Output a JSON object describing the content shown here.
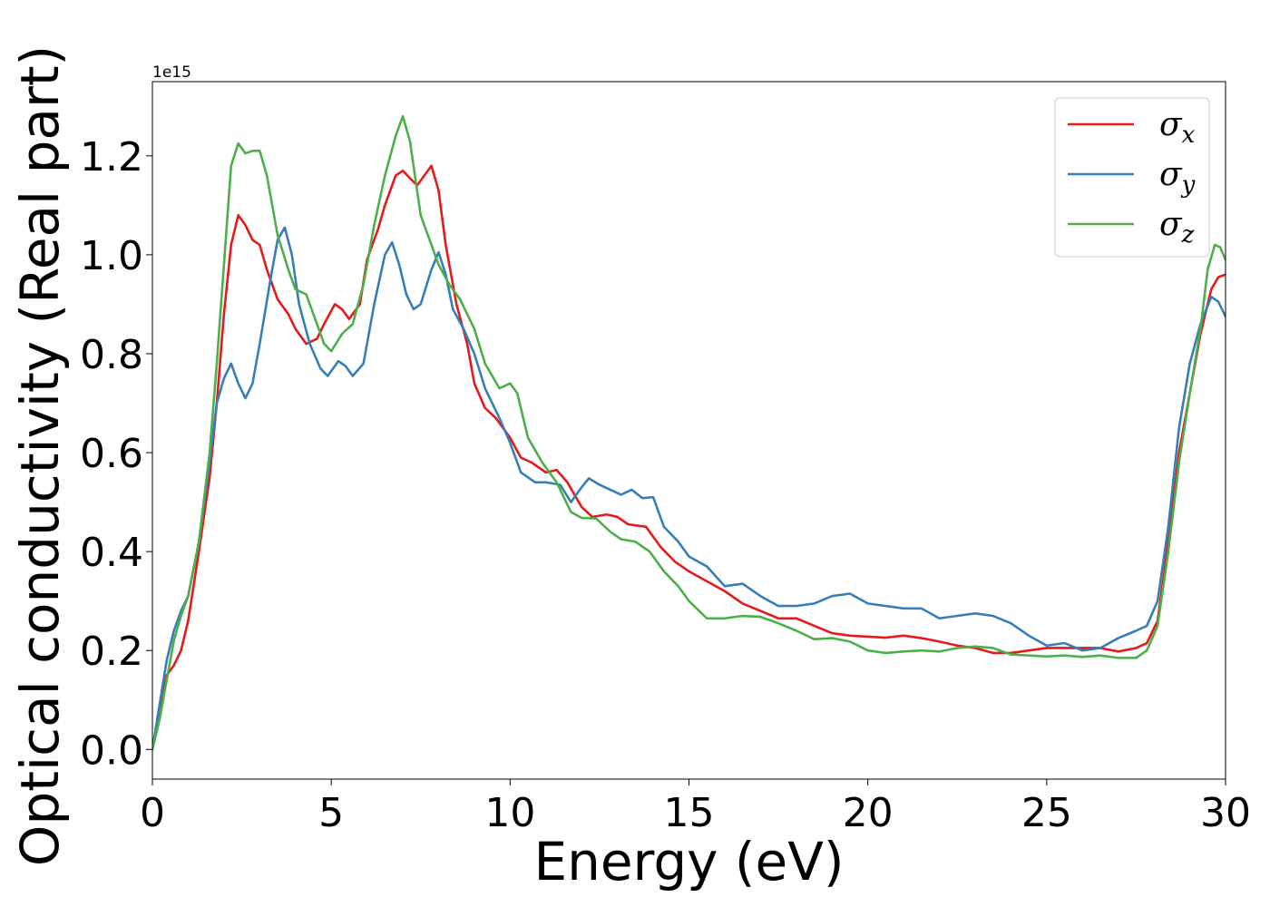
{
  "chart_data": {
    "type": "line",
    "xlabel": "Energy (eV)",
    "ylabel": "Optical conductivity (Real part)",
    "y_offset_text": "1e15",
    "xlim": [
      0,
      30
    ],
    "ylim": [
      -0.06,
      1.35
    ],
    "x_ticks": [
      0,
      5,
      10,
      15,
      20,
      25,
      30
    ],
    "x_tick_labels": [
      "0",
      "5",
      "10",
      "15",
      "20",
      "25",
      "30"
    ],
    "y_ticks": [
      0.0,
      0.2,
      0.4,
      0.6,
      0.8,
      1.0,
      1.2
    ],
    "y_tick_labels": [
      "0.0",
      "0.2",
      "0.4",
      "0.6",
      "0.8",
      "1.0",
      "1.2"
    ],
    "grid": false,
    "legend_position": "top-right",
    "series": [
      {
        "name": "σx",
        "symbol": "σ",
        "subscript": "x",
        "color": "#e41a1c",
        "points": [
          [
            0,
            0
          ],
          [
            0.2,
            0.08
          ],
          [
            0.4,
            0.15
          ],
          [
            0.6,
            0.17
          ],
          [
            0.8,
            0.2
          ],
          [
            1.0,
            0.26
          ],
          [
            1.3,
            0.4
          ],
          [
            1.6,
            0.55
          ],
          [
            1.8,
            0.7
          ],
          [
            2.0,
            0.88
          ],
          [
            2.2,
            1.02
          ],
          [
            2.4,
            1.08
          ],
          [
            2.6,
            1.06
          ],
          [
            2.8,
            1.03
          ],
          [
            3.0,
            1.02
          ],
          [
            3.2,
            0.97
          ],
          [
            3.5,
            0.91
          ],
          [
            3.8,
            0.88
          ],
          [
            4.0,
            0.85
          ],
          [
            4.3,
            0.82
          ],
          [
            4.6,
            0.83
          ],
          [
            4.8,
            0.86
          ],
          [
            5.1,
            0.9
          ],
          [
            5.3,
            0.89
          ],
          [
            5.5,
            0.87
          ],
          [
            5.8,
            0.9
          ],
          [
            6.0,
            0.99
          ],
          [
            6.3,
            1.05
          ],
          [
            6.5,
            1.1
          ],
          [
            6.8,
            1.16
          ],
          [
            7.0,
            1.17
          ],
          [
            7.2,
            1.155
          ],
          [
            7.4,
            1.14
          ],
          [
            7.6,
            1.16
          ],
          [
            7.8,
            1.18
          ],
          [
            8.0,
            1.13
          ],
          [
            8.2,
            1.02
          ],
          [
            8.5,
            0.9
          ],
          [
            8.8,
            0.82
          ],
          [
            9.0,
            0.74
          ],
          [
            9.3,
            0.69
          ],
          [
            9.6,
            0.67
          ],
          [
            10.0,
            0.63
          ],
          [
            10.3,
            0.59
          ],
          [
            10.6,
            0.58
          ],
          [
            11.0,
            0.56
          ],
          [
            11.3,
            0.565
          ],
          [
            11.6,
            0.54
          ],
          [
            12.0,
            0.49
          ],
          [
            12.3,
            0.47
          ],
          [
            12.7,
            0.475
          ],
          [
            13.0,
            0.47
          ],
          [
            13.3,
            0.455
          ],
          [
            13.8,
            0.45
          ],
          [
            14.2,
            0.41
          ],
          [
            14.6,
            0.38
          ],
          [
            15.0,
            0.36
          ],
          [
            15.5,
            0.34
          ],
          [
            16.0,
            0.32
          ],
          [
            16.5,
            0.295
          ],
          [
            17.0,
            0.28
          ],
          [
            17.5,
            0.265
          ],
          [
            18.0,
            0.265
          ],
          [
            18.5,
            0.25
          ],
          [
            19.0,
            0.235
          ],
          [
            19.5,
            0.23
          ],
          [
            20.0,
            0.228
          ],
          [
            20.5,
            0.226
          ],
          [
            21.0,
            0.23
          ],
          [
            21.5,
            0.225
          ],
          [
            22.0,
            0.218
          ],
          [
            22.5,
            0.21
          ],
          [
            23.0,
            0.205
          ],
          [
            23.5,
            0.195
          ],
          [
            24.0,
            0.195
          ],
          [
            24.5,
            0.2
          ],
          [
            25.0,
            0.205
          ],
          [
            25.5,
            0.205
          ],
          [
            26.0,
            0.205
          ],
          [
            26.5,
            0.205
          ],
          [
            27.0,
            0.198
          ],
          [
            27.5,
            0.205
          ],
          [
            27.8,
            0.215
          ],
          [
            28.1,
            0.26
          ],
          [
            28.4,
            0.42
          ],
          [
            28.7,
            0.6
          ],
          [
            29.0,
            0.72
          ],
          [
            29.3,
            0.84
          ],
          [
            29.6,
            0.93
          ],
          [
            29.8,
            0.955
          ],
          [
            30.0,
            0.96
          ]
        ]
      },
      {
        "name": "σy",
        "symbol": "σ",
        "subscript": "y",
        "color": "#377eb8",
        "points": [
          [
            0,
            0
          ],
          [
            0.2,
            0.09
          ],
          [
            0.4,
            0.18
          ],
          [
            0.6,
            0.24
          ],
          [
            0.8,
            0.28
          ],
          [
            1.0,
            0.31
          ],
          [
            1.3,
            0.42
          ],
          [
            1.6,
            0.58
          ],
          [
            1.8,
            0.7
          ],
          [
            2.0,
            0.75
          ],
          [
            2.2,
            0.78
          ],
          [
            2.4,
            0.74
          ],
          [
            2.6,
            0.71
          ],
          [
            2.8,
            0.74
          ],
          [
            3.0,
            0.82
          ],
          [
            3.3,
            0.95
          ],
          [
            3.5,
            1.03
          ],
          [
            3.7,
            1.055
          ],
          [
            3.9,
            1.0
          ],
          [
            4.1,
            0.9
          ],
          [
            4.4,
            0.82
          ],
          [
            4.7,
            0.77
          ],
          [
            4.9,
            0.755
          ],
          [
            5.2,
            0.785
          ],
          [
            5.4,
            0.775
          ],
          [
            5.6,
            0.755
          ],
          [
            5.9,
            0.78
          ],
          [
            6.2,
            0.9
          ],
          [
            6.5,
            1.0
          ],
          [
            6.7,
            1.025
          ],
          [
            6.9,
            0.98
          ],
          [
            7.1,
            0.92
          ],
          [
            7.3,
            0.89
          ],
          [
            7.5,
            0.9
          ],
          [
            7.8,
            0.97
          ],
          [
            8.0,
            1.005
          ],
          [
            8.2,
            0.96
          ],
          [
            8.4,
            0.89
          ],
          [
            8.7,
            0.85
          ],
          [
            9.0,
            0.8
          ],
          [
            9.3,
            0.73
          ],
          [
            9.7,
            0.67
          ],
          [
            10.0,
            0.62
          ],
          [
            10.3,
            0.56
          ],
          [
            10.7,
            0.54
          ],
          [
            11.0,
            0.54
          ],
          [
            11.4,
            0.535
          ],
          [
            11.7,
            0.5
          ],
          [
            12.0,
            0.53
          ],
          [
            12.2,
            0.548
          ],
          [
            12.5,
            0.535
          ],
          [
            12.8,
            0.525
          ],
          [
            13.1,
            0.515
          ],
          [
            13.4,
            0.525
          ],
          [
            13.7,
            0.508
          ],
          [
            14.0,
            0.51
          ],
          [
            14.3,
            0.45
          ],
          [
            14.7,
            0.42
          ],
          [
            15.0,
            0.39
          ],
          [
            15.5,
            0.37
          ],
          [
            16.0,
            0.33
          ],
          [
            16.5,
            0.335
          ],
          [
            17.0,
            0.31
          ],
          [
            17.5,
            0.29
          ],
          [
            18.0,
            0.29
          ],
          [
            18.5,
            0.295
          ],
          [
            19.0,
            0.31
          ],
          [
            19.5,
            0.315
          ],
          [
            20.0,
            0.295
          ],
          [
            20.5,
            0.29
          ],
          [
            21.0,
            0.285
          ],
          [
            21.5,
            0.285
          ],
          [
            22.0,
            0.265
          ],
          [
            22.5,
            0.27
          ],
          [
            23.0,
            0.275
          ],
          [
            23.5,
            0.27
          ],
          [
            24.0,
            0.255
          ],
          [
            24.5,
            0.23
          ],
          [
            25.0,
            0.21
          ],
          [
            25.5,
            0.215
          ],
          [
            26.0,
            0.2
          ],
          [
            26.5,
            0.205
          ],
          [
            27.0,
            0.225
          ],
          [
            27.5,
            0.24
          ],
          [
            27.8,
            0.25
          ],
          [
            28.1,
            0.3
          ],
          [
            28.4,
            0.45
          ],
          [
            28.7,
            0.65
          ],
          [
            29.0,
            0.78
          ],
          [
            29.3,
            0.86
          ],
          [
            29.6,
            0.915
          ],
          [
            29.8,
            0.905
          ],
          [
            30.0,
            0.875
          ]
        ]
      },
      {
        "name": "σz",
        "symbol": "σ",
        "subscript": "z",
        "color": "#4daf4a",
        "points": [
          [
            0,
            0
          ],
          [
            0.2,
            0.06
          ],
          [
            0.4,
            0.14
          ],
          [
            0.6,
            0.22
          ],
          [
            0.8,
            0.27
          ],
          [
            1.0,
            0.31
          ],
          [
            1.3,
            0.42
          ],
          [
            1.6,
            0.6
          ],
          [
            1.8,
            0.78
          ],
          [
            2.0,
            0.98
          ],
          [
            2.2,
            1.18
          ],
          [
            2.4,
            1.225
          ],
          [
            2.6,
            1.205
          ],
          [
            2.8,
            1.21
          ],
          [
            3.0,
            1.21
          ],
          [
            3.2,
            1.16
          ],
          [
            3.5,
            1.04
          ],
          [
            3.8,
            0.97
          ],
          [
            4.0,
            0.93
          ],
          [
            4.3,
            0.92
          ],
          [
            4.6,
            0.86
          ],
          [
            4.8,
            0.82
          ],
          [
            5.0,
            0.805
          ],
          [
            5.3,
            0.84
          ],
          [
            5.6,
            0.86
          ],
          [
            5.9,
            0.94
          ],
          [
            6.2,
            1.06
          ],
          [
            6.5,
            1.16
          ],
          [
            6.8,
            1.24
          ],
          [
            7.0,
            1.28
          ],
          [
            7.2,
            1.23
          ],
          [
            7.5,
            1.08
          ],
          [
            7.8,
            1.02
          ],
          [
            8.0,
            0.98
          ],
          [
            8.3,
            0.94
          ],
          [
            8.6,
            0.91
          ],
          [
            9.0,
            0.85
          ],
          [
            9.3,
            0.78
          ],
          [
            9.7,
            0.73
          ],
          [
            10.0,
            0.74
          ],
          [
            10.2,
            0.72
          ],
          [
            10.5,
            0.63
          ],
          [
            10.9,
            0.58
          ],
          [
            11.3,
            0.54
          ],
          [
            11.7,
            0.48
          ],
          [
            12.0,
            0.468
          ],
          [
            12.4,
            0.467
          ],
          [
            12.8,
            0.44
          ],
          [
            13.1,
            0.425
          ],
          [
            13.5,
            0.42
          ],
          [
            13.9,
            0.4
          ],
          [
            14.3,
            0.36
          ],
          [
            14.7,
            0.33
          ],
          [
            15.0,
            0.3
          ],
          [
            15.5,
            0.265
          ],
          [
            16.0,
            0.265
          ],
          [
            16.5,
            0.27
          ],
          [
            17.0,
            0.268
          ],
          [
            17.5,
            0.255
          ],
          [
            18.0,
            0.24
          ],
          [
            18.5,
            0.223
          ],
          [
            19.0,
            0.225
          ],
          [
            19.5,
            0.218
          ],
          [
            20.0,
            0.2
          ],
          [
            20.5,
            0.195
          ],
          [
            21.0,
            0.198
          ],
          [
            21.5,
            0.2
          ],
          [
            22.0,
            0.198
          ],
          [
            22.5,
            0.205
          ],
          [
            23.0,
            0.208
          ],
          [
            23.5,
            0.205
          ],
          [
            24.0,
            0.192
          ],
          [
            24.5,
            0.19
          ],
          [
            25.0,
            0.188
          ],
          [
            25.5,
            0.19
          ],
          [
            26.0,
            0.187
          ],
          [
            26.5,
            0.19
          ],
          [
            27.0,
            0.185
          ],
          [
            27.5,
            0.185
          ],
          [
            27.8,
            0.2
          ],
          [
            28.1,
            0.25
          ],
          [
            28.4,
            0.4
          ],
          [
            28.7,
            0.58
          ],
          [
            29.0,
            0.72
          ],
          [
            29.3,
            0.85
          ],
          [
            29.5,
            0.97
          ],
          [
            29.7,
            1.02
          ],
          [
            29.85,
            1.015
          ],
          [
            30.0,
            0.99
          ]
        ]
      }
    ]
  }
}
